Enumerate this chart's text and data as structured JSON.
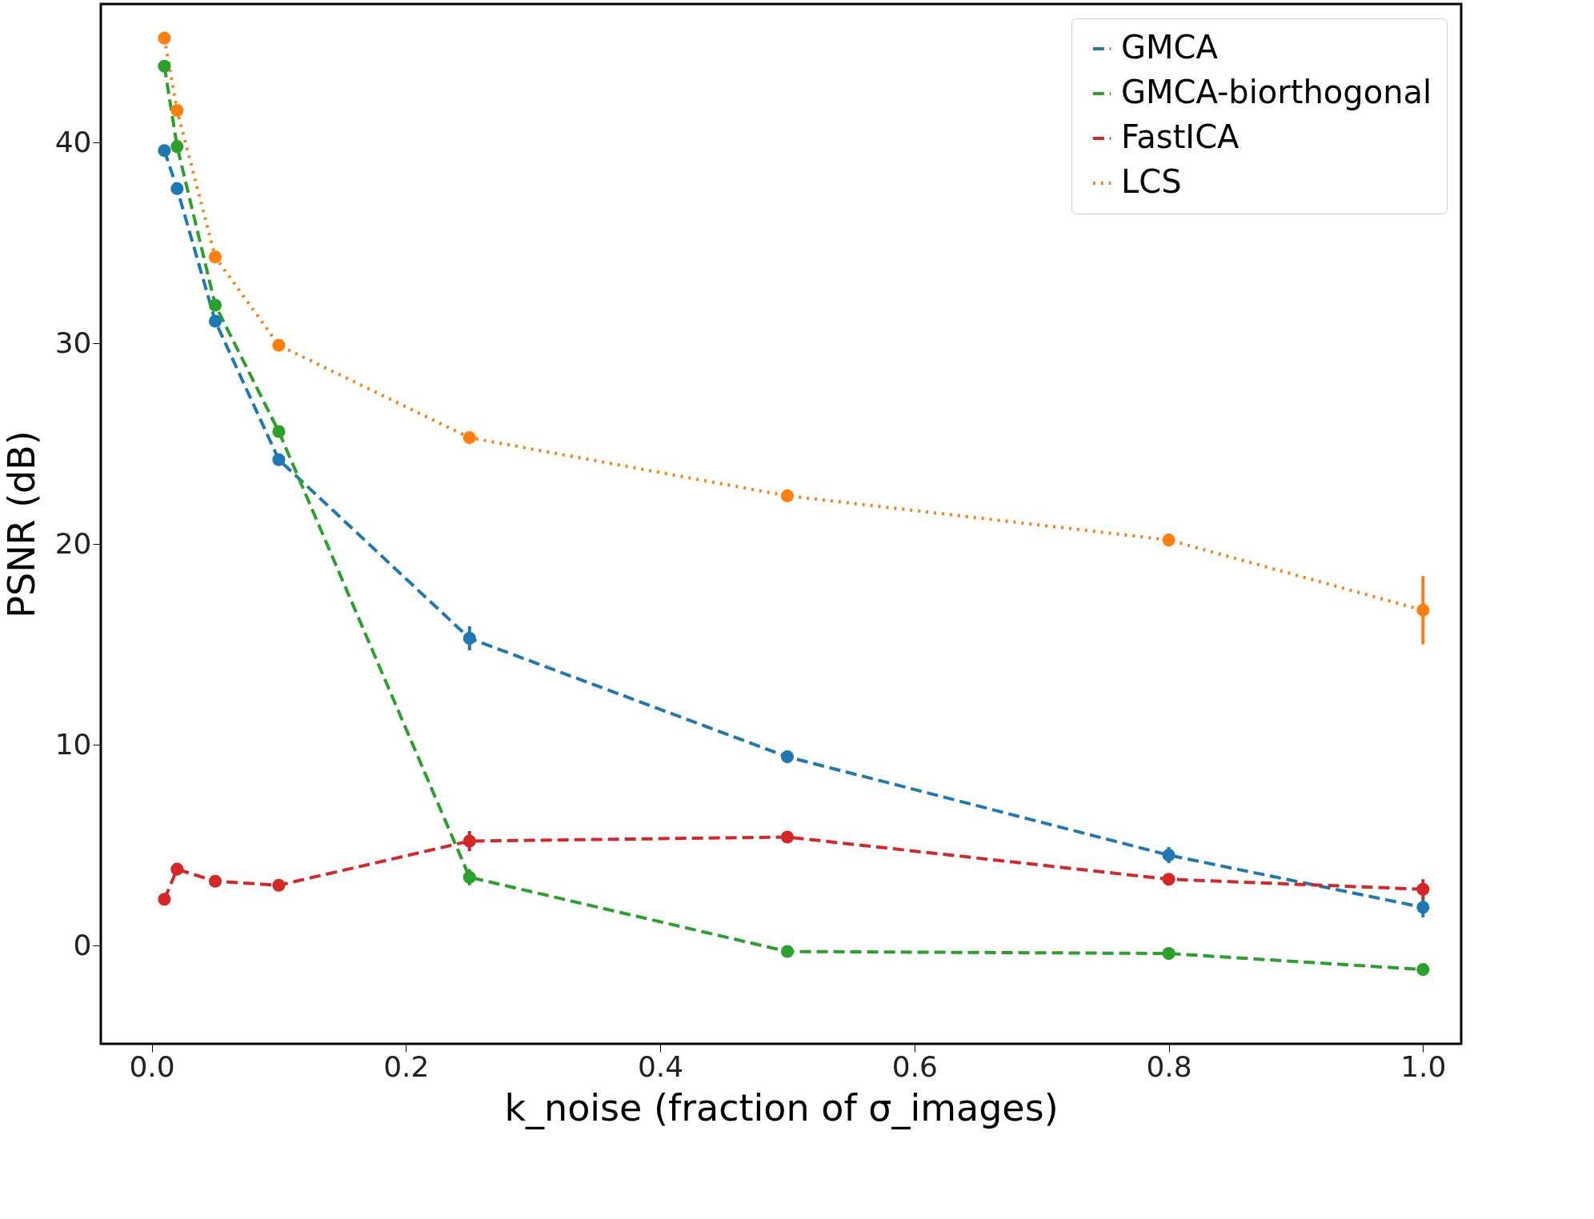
{
  "chart_data": {
    "type": "line",
    "xlabel": "k_noise (fraction of σ_images)",
    "ylabel": "PSNR (dB)",
    "x": [
      0.01,
      0.02,
      0.05,
      0.1,
      0.25,
      0.5,
      0.8,
      1.0
    ],
    "xlim": [
      -0.04,
      1.03
    ],
    "xticks": [
      {
        "value": 0,
        "label": "0.0"
      },
      0.2,
      0.4,
      0.6,
      0.8,
      {
        "value": 1,
        "label": "1.0"
      }
    ],
    "ylim": [
      -4.9,
      46.9
    ],
    "yticks": [
      0,
      10,
      20,
      30,
      40
    ],
    "grid": false,
    "legend": "top right",
    "marker": "circle",
    "series": [
      {
        "name": "GMCA",
        "color": "#1f77b4",
        "line_style": "dashed",
        "values": [
          39.6,
          37.7,
          31.1,
          24.2,
          15.3,
          9.4,
          4.5,
          1.9
        ],
        "errors": [
          null,
          null,
          null,
          null,
          0.6,
          null,
          0.4,
          0.5
        ]
      },
      {
        "name": "GMCA-biorthogonal",
        "color": "#2ca02c",
        "line_style": "dashed",
        "values": [
          43.8,
          39.8,
          31.9,
          25.6,
          3.4,
          -0.3,
          -0.4,
          -1.2
        ],
        "errors": [
          null,
          null,
          null,
          null,
          0.4,
          null,
          null,
          null
        ]
      },
      {
        "name": "FastICA",
        "color": "#d62728",
        "line_style": "dashed",
        "values": [
          2.3,
          3.8,
          3.2,
          3.0,
          5.2,
          5.4,
          3.3,
          2.8
        ],
        "errors": [
          null,
          null,
          null,
          null,
          0.5,
          0.3,
          null,
          0.5
        ]
      },
      {
        "name": "LCS",
        "color": "#ff7f0e",
        "line_style": "dotted",
        "values": [
          45.2,
          41.6,
          34.3,
          29.9,
          25.3,
          22.4,
          20.2,
          16.7
        ],
        "errors": [
          null,
          null,
          null,
          null,
          null,
          null,
          null,
          1.7
        ]
      }
    ]
  }
}
